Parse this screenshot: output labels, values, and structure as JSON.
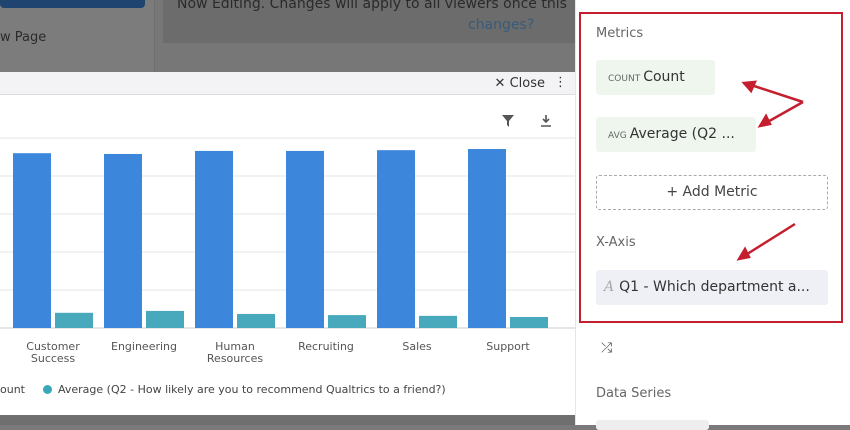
{
  "background": {
    "new_page": "w Page",
    "banner_text": "Now Editing. Changes will apply to all viewers once this",
    "banner_link": "changes?"
  },
  "modal": {
    "close_label": "Close",
    "kebab": "⋮"
  },
  "chart_data": {
    "type": "bar",
    "categories": [
      [
        "Customer",
        "Success"
      ],
      [
        "Engineering"
      ],
      [
        "Human",
        "Resources"
      ],
      [
        "Recruiting"
      ],
      [
        "Sales"
      ],
      [
        "Support"
      ]
    ],
    "series": [
      {
        "name": "Count",
        "color": "#3c87dc",
        "values": [
          4.6,
          4.58,
          4.66,
          4.66,
          4.68,
          4.71
        ]
      },
      {
        "name": "Average (Q2 - How likely are you to recommend Qualtrics to a friend?)",
        "color": "#47a9bb",
        "values": [
          0.4,
          0.45,
          0.37,
          0.34,
          0.32,
          0.29
        ]
      }
    ],
    "ylim": [
      0,
      5
    ],
    "grid": true,
    "legend": "bottom",
    "legend_visible_text": [
      "ount",
      "Average (Q2 - How likely are you to recommend Qualtrics to a friend?)"
    ]
  },
  "panel": {
    "metrics_label": "Metrics",
    "metrics": [
      {
        "tag": "COUNT",
        "label": "Count"
      },
      {
        "tag": "AVG",
        "label": "Average (Q2 ..."
      }
    ],
    "add_metric": "+ Add Metric",
    "xaxis_label": "X-Axis",
    "xaxis_value": "Q1 - Which department a...",
    "xaxis_icon": "A",
    "shuffle_icon": "⤮",
    "data_series_label": "Data Series",
    "highlight_color": "#c41f2e"
  }
}
